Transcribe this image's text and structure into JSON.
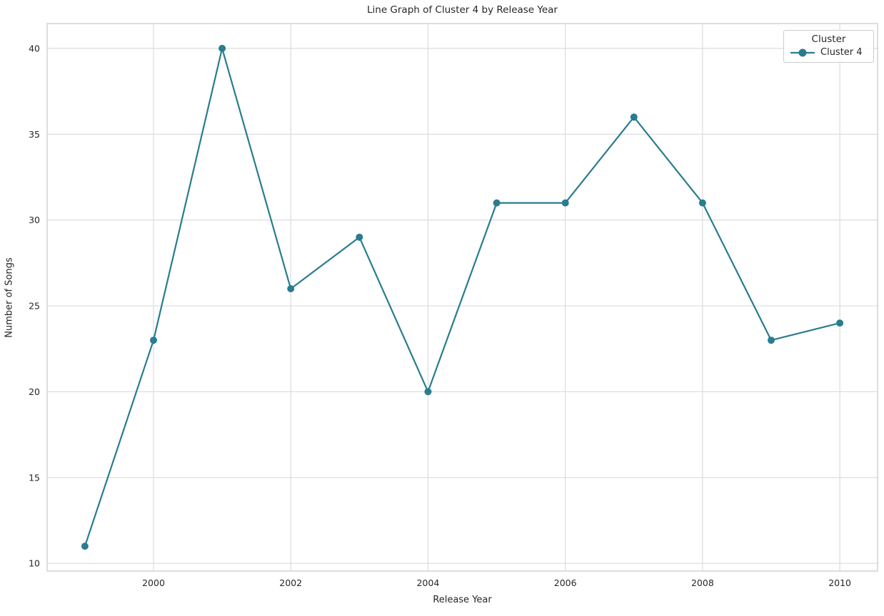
{
  "chart_data": {
    "type": "line",
    "title": "Line Graph of Cluster 4 by Release Year",
    "xlabel": "Release Year",
    "ylabel": "Number of Songs",
    "x": [
      1999,
      2000,
      2001,
      2002,
      2003,
      2004,
      2005,
      2006,
      2007,
      2008,
      2009,
      2010
    ],
    "series": [
      {
        "name": "Cluster 4",
        "color": "#287d8e",
        "values": [
          11,
          23,
          40,
          26,
          29,
          20,
          31,
          31,
          36,
          31,
          23,
          24
        ]
      }
    ],
    "xticks": [
      2000,
      2002,
      2004,
      2006,
      2008,
      2010
    ],
    "yticks": [
      10,
      15,
      20,
      25,
      30,
      35,
      40
    ],
    "xlim": [
      1998.45,
      2010.55
    ],
    "ylim": [
      9.55,
      41.45
    ],
    "grid": true,
    "legend": {
      "title": "Cluster",
      "entries": [
        "Cluster 4"
      ],
      "position": "upper right"
    }
  }
}
